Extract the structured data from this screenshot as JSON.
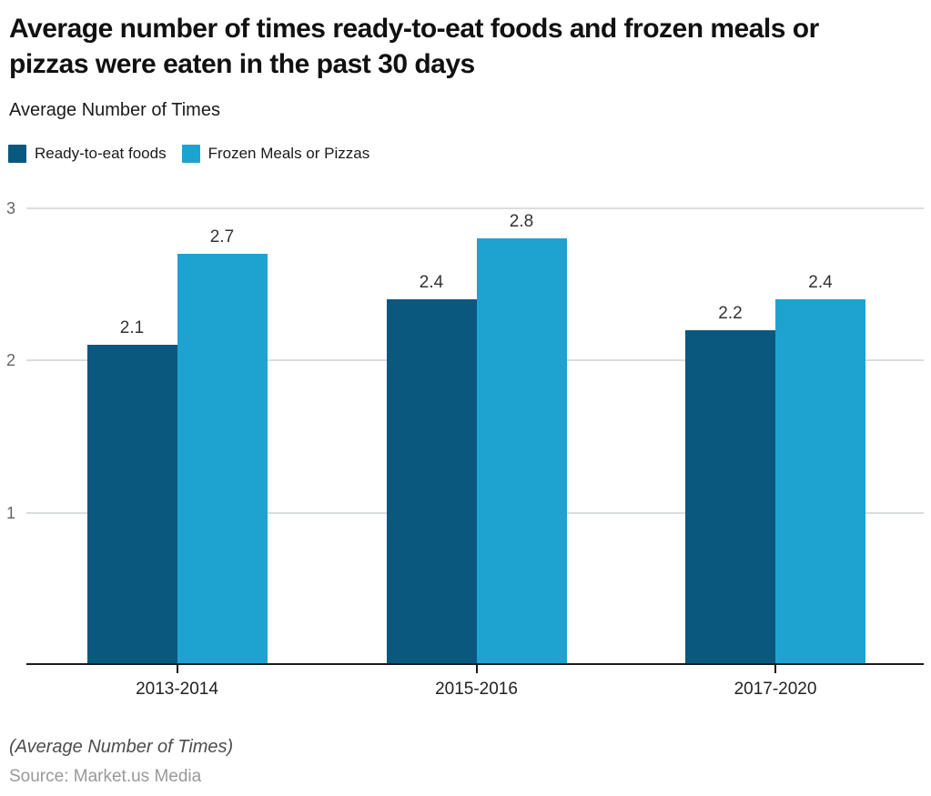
{
  "chart_data": {
    "type": "bar",
    "title": "Average number of times ready-to-eat foods and frozen meals or pizzas were eaten in the past 30 days",
    "subtitle": "Average Number of Times",
    "categories": [
      "2013-2014",
      "2015-2016",
      "2017-2020"
    ],
    "series": [
      {
        "name": "Ready-to-eat foods",
        "color": "#0a587e",
        "values": [
          2.1,
          2.4,
          2.2
        ]
      },
      {
        "name": "Frozen Meals or Pizzas",
        "color": "#1ea3d1",
        "values": [
          2.7,
          2.8,
          2.4
        ]
      }
    ],
    "ylim": [
      0,
      3
    ],
    "yticks": [
      3,
      2,
      1
    ],
    "grid": true,
    "legend_position": "top-left",
    "value_labels_shown": true
  },
  "footer": {
    "note": "(Average Number of Times)",
    "source": "Source: Market.us Media"
  }
}
